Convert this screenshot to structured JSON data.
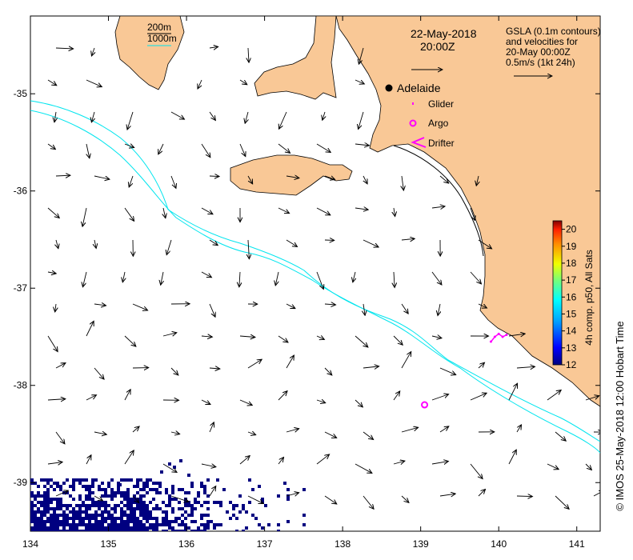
{
  "map": {
    "title_date": "22-May-2018",
    "title_time": "20:00Z",
    "info_lines": [
      "GSLA (0.1m contours)",
      "and velocities for",
      "20-May 00:00Z",
      "0.5m/s (1kt 24h)"
    ],
    "credit": "© IMOS 25-May-2018 12:00 Hobart Time",
    "colors": {
      "land": "#f9c896",
      "contour": "#00e5ee",
      "marker": "#ff00ff",
      "fill": "#000080"
    }
  },
  "axes": {
    "x_ticks": [
      "134",
      "135",
      "136",
      "137",
      "138",
      "139",
      "140",
      "141"
    ],
    "y_ticks": [
      "-35",
      "-36",
      "-37",
      "-38",
      "-39"
    ],
    "xlim": [
      134,
      141.3
    ],
    "ylim": [
      -39.5,
      -34.2
    ]
  },
  "depth_legend": {
    "items": [
      {
        "label": "200m",
        "color": "#000000"
      },
      {
        "label": "1000m",
        "color": "#00e5ee"
      }
    ]
  },
  "legend": {
    "adelaide": "Adelaide",
    "glider": "Glider",
    "argo": "Argo",
    "drifter": "Drifter"
  },
  "colorbar": {
    "label": "4h comp. p50, All Sats",
    "ticks": [
      "20",
      "19",
      "18",
      "17",
      "16",
      "15",
      "14",
      "13",
      "12"
    ],
    "range": [
      12,
      20.5
    ]
  },
  "observations": {
    "argo_float": {
      "lon": 139.05,
      "lat": -38.2
    },
    "glider_track": {
      "lon": [
        139.9,
        139.95,
        140.0,
        140.05,
        140.1
      ],
      "lat": [
        -37.55,
        -37.5,
        -37.47,
        -37.5,
        -37.48
      ]
    }
  }
}
